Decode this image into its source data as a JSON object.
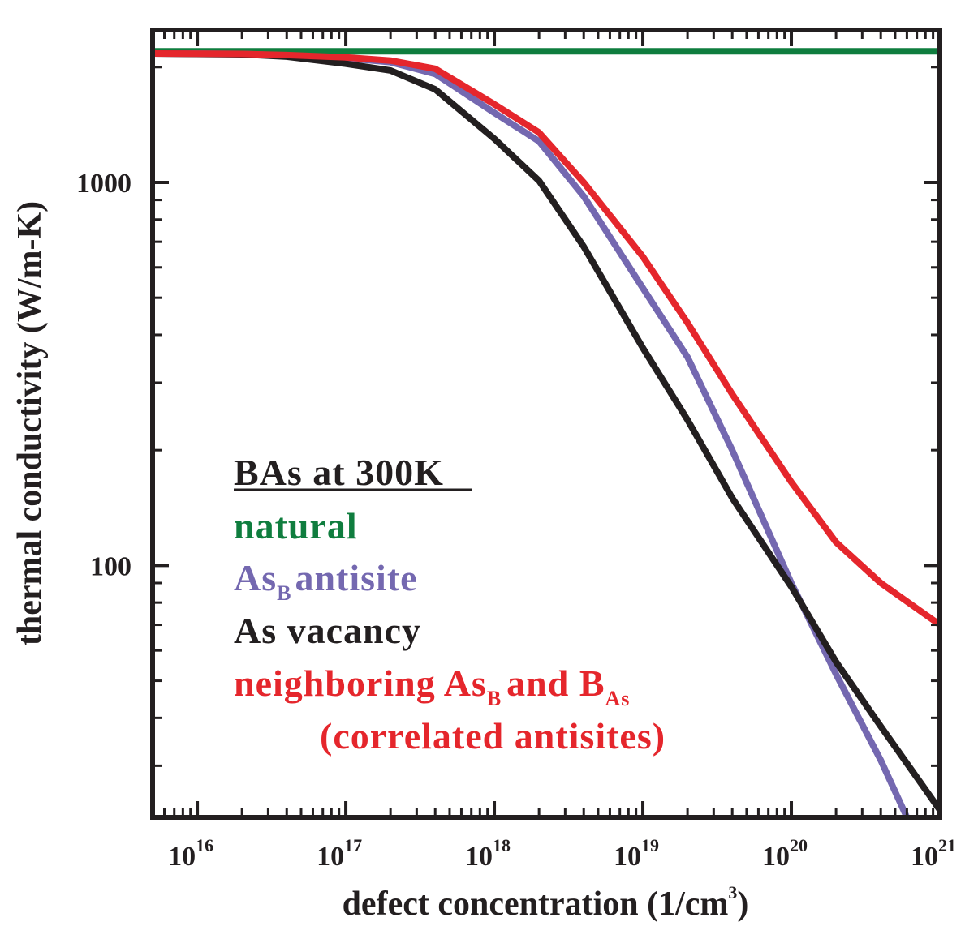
{
  "chart_data": {
    "type": "line",
    "title": "",
    "xlabel": "defect concentration (1/cm3)",
    "xlabel_main": "defect concentration (1/cm",
    "xlabel_exp": "3",
    "xlabel_close": ")",
    "ylabel": "thermal conductivity (W/m-K)",
    "x_scale": "log",
    "y_scale": "log",
    "xlim": [
      5000000000000000.0,
      1e+21
    ],
    "ylim": [
      22,
      2500
    ],
    "x_ticks": [
      {
        "value": 1e+16,
        "base": "10",
        "exp": "16"
      },
      {
        "value": 1e+17,
        "base": "10",
        "exp": "17"
      },
      {
        "value": 1e+18,
        "base": "10",
        "exp": "18"
      },
      {
        "value": 1e+19,
        "base": "10",
        "exp": "19"
      },
      {
        "value": 1e+20,
        "base": "10",
        "exp": "20"
      },
      {
        "value": 1e+21,
        "base": "10",
        "exp": "21"
      }
    ],
    "y_ticks": [
      {
        "value": 100,
        "label": "100"
      },
      {
        "value": 1000,
        "label": "1000"
      }
    ],
    "colors": {
      "axis": "#231f20",
      "natural": "#0f7d3e",
      "antisite": "#7468b0",
      "vacancy": "#231f20",
      "correlated": "#e5262c"
    },
    "legend": {
      "title": "BAs at 300K",
      "entries": [
        {
          "key": "natural",
          "text": "natural"
        },
        {
          "key": "antisite",
          "main": "As",
          "sub": "B",
          "rest": "antisite"
        },
        {
          "key": "vacancy",
          "text": "As vacancy"
        },
        {
          "key": "correlated",
          "part1": "neighboring As",
          "sub1": "B",
          "part2": "and B",
          "sub2": "As",
          "line2": "(correlated antisites)"
        }
      ]
    },
    "series": [
      {
        "name": "natural",
        "x": [
          5000000000000000.0,
          1e+21
        ],
        "y": [
          2200,
          2200
        ]
      },
      {
        "name": "As_B antisite",
        "x": [
          5000000000000000.0,
          2e+16,
          4e+16,
          1e+17,
          2e+17,
          4e+17,
          1e+18,
          2e+18,
          4e+18,
          1e+19,
          2e+19,
          4e+19,
          1e+20,
          2e+20,
          4e+20,
          6e+20
        ],
        "y": [
          2170,
          2165,
          2145,
          2110,
          2060,
          1920,
          1520,
          1280,
          920,
          530,
          350,
          200,
          90,
          52,
          31,
          22
        ]
      },
      {
        "name": "As vacancy",
        "x": [
          5000000000000000.0,
          2e+16,
          4e+16,
          1e+17,
          2e+17,
          4e+17,
          1e+18,
          2e+18,
          4e+18,
          1e+19,
          2e+19,
          4e+19,
          1e+20,
          2e+20,
          4e+20,
          1e+21
        ],
        "y": [
          2170,
          2160,
          2130,
          2040,
          1960,
          1750,
          1300,
          1010,
          680,
          370,
          240,
          150,
          88,
          56,
          38,
          23
        ]
      },
      {
        "name": "neighboring As_B and B_As (correlated antisites)",
        "x": [
          5000000000000000.0,
          2e+16,
          4e+16,
          1e+17,
          2e+17,
          4e+17,
          1e+18,
          2e+18,
          4e+18,
          1e+19,
          2e+19,
          4e+19,
          1e+20,
          2e+20,
          4e+20,
          1e+21
        ],
        "y": [
          2170,
          2165,
          2150,
          2120,
          2080,
          1980,
          1600,
          1350,
          1000,
          640,
          430,
          280,
          165,
          115,
          90,
          70
        ]
      }
    ]
  }
}
